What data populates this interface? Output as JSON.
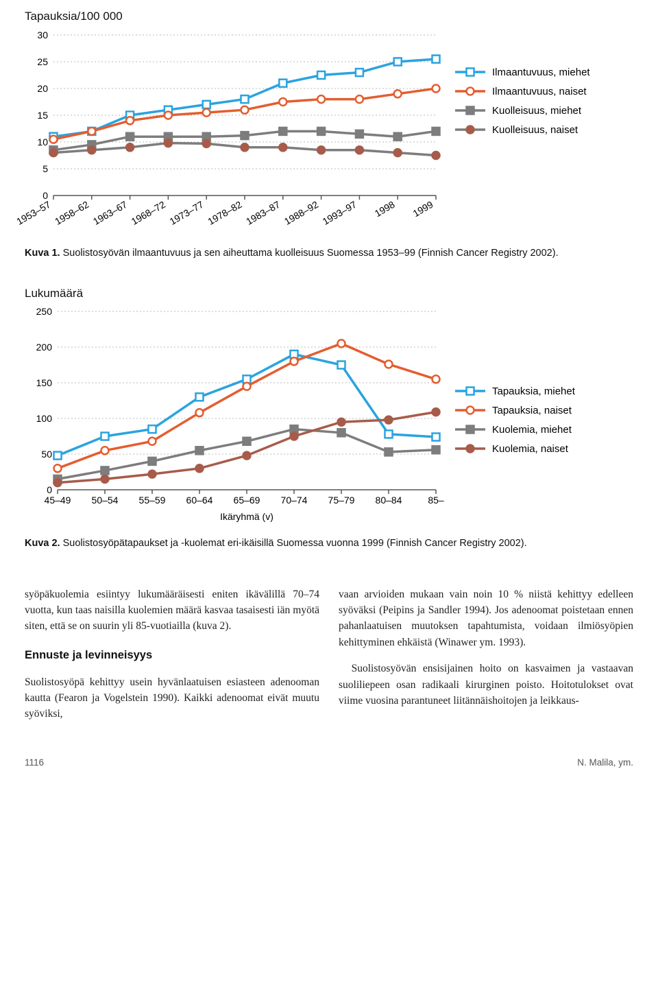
{
  "chart1": {
    "type": "line",
    "title": "Tapauksia/100 000",
    "x_labels": [
      "1953–57",
      "1958–62",
      "1963–67",
      "1968–72",
      "1973–77",
      "1978–82",
      "1983–87",
      "1988–92",
      "1993–97",
      "1998",
      "1999"
    ],
    "ylim": [
      0,
      30
    ],
    "ytick_step": 5,
    "grid_color": "#b9b9b9",
    "axis_color": "#555",
    "plot_bg": "#ffffff",
    "series": {
      "ilmaantuvuus_miehet": {
        "label": "Ilmaantuvuus, miehet",
        "color": "#2aa3df",
        "marker": "square",
        "marker_fill": "#ffffff",
        "values": [
          11,
          12,
          15,
          16,
          17,
          18,
          21,
          22.5,
          23,
          25,
          25.5
        ]
      },
      "ilmaantuvuus_naiset": {
        "label": "Ilmaantuvuus, naiset",
        "color": "#e45d2f",
        "marker": "circle",
        "marker_fill": "#ffffff",
        "values": [
          10.5,
          12,
          14,
          15,
          15.5,
          16,
          17.5,
          18,
          18,
          19,
          20
        ]
      },
      "kuolleisuus_miehet": {
        "label": "Kuolleisuus, miehet",
        "color": "#7d7d7d",
        "marker": "square",
        "marker_fill": "#7d7d7d",
        "values": [
          8.5,
          9.5,
          11,
          11,
          11,
          11.2,
          12,
          12,
          11.5,
          11,
          12
        ]
      },
      "kuolleisuus_naiset": {
        "label": "Kuolleisuus, naiset",
        "color": "#7d7d7d",
        "marker": "circle",
        "marker_fill": "#a75b4a",
        "stroke": "#a75b4a",
        "values": [
          8,
          8.5,
          9,
          9.8,
          9.7,
          9,
          9,
          8.5,
          8.5,
          8,
          7.5
        ]
      }
    }
  },
  "caption1_bold": "Kuva 1.",
  "caption1_text": "Suolistosyövän ilmaantuvuus ja sen aiheuttama kuolleisuus Suomessa 1953–99 (Finnish Cancer Registry 2002).",
  "chart2": {
    "type": "line",
    "title": "Lukumäärä",
    "x_labels": [
      "45–49",
      "50–54",
      "55–59",
      "60–64",
      "65–69",
      "70–74",
      "75–79",
      "80–84",
      "85–"
    ],
    "x_axis_label": "Ikäryhmä (v)",
    "ylim": [
      0,
      250
    ],
    "ytick_step": 50,
    "grid_color": "#b9b9b9",
    "axis_color": "#555",
    "plot_bg": "#ffffff",
    "series": {
      "tapauksia_miehet": {
        "label": "Tapauksia, miehet",
        "color": "#2aa3df",
        "marker": "square",
        "marker_fill": "#ffffff",
        "values": [
          48,
          75,
          85,
          130,
          155,
          190,
          175,
          78,
          74
        ]
      },
      "tapauksia_naiset": {
        "label": "Tapauksia, naiset",
        "color": "#e45d2f",
        "marker": "circle",
        "marker_fill": "#ffffff",
        "values": [
          30,
          55,
          68,
          108,
          145,
          180,
          205,
          176,
          155
        ]
      },
      "kuolemia_miehet": {
        "label": "Kuolemia, miehet",
        "color": "#7d7d7d",
        "marker": "square",
        "marker_fill": "#7d7d7d",
        "values": [
          15,
          27,
          40,
          55,
          68,
          85,
          80,
          53,
          56
        ]
      },
      "kuolemia_naiset": {
        "label": "Kuolemia, naiset",
        "color": "#a75b4a",
        "marker": "circle",
        "marker_fill": "#a75b4a",
        "values": [
          10,
          15,
          22,
          30,
          48,
          75,
          95,
          98,
          109
        ]
      }
    }
  },
  "caption2_bold": "Kuva 2.",
  "caption2_text": "Suolistosyöpätapaukset ja -kuolemat eri-ikäisillä Suomessa vuonna 1999 (Finnish Cancer Registry 2002).",
  "body": {
    "col1_p1": "syöpäkuolemia esiintyy lukumääräisesti eniten ikävälillä 70–74 vuotta, kun taas naisilla kuolemien määrä kasvaa tasaisesti iän myötä siten, että se on suurin yli 85-vuotiailla (kuva 2).",
    "section_heading": "Ennuste ja levinneisyys",
    "col1_p2": "Suolistosyöpä kehittyy usein hyvänlaatuisen esiasteen adenooman kautta (Fearon ja Vogelstein 1990). Kaikki adenoomat eivät muutu syöviksi,",
    "col2_p1": "vaan arvioiden mukaan vain noin 10 % niistä kehittyy edelleen syöväksi (Peipins ja Sandler 1994). Jos adenoomat poistetaan ennen pahanlaatuisen muutoksen tapahtumista, voidaan ilmiösyöpien kehittyminen ehkäistä (Winawer ym. 1993).",
    "col2_p2": "Suolistosyövän ensisijainen hoito on kasvaimen ja vastaavan suoliliepeen osan radikaali kirurginen poisto. Hoitotulokset ovat viime vuosina parantuneet liitännäishoitojen ja leikkaus-"
  },
  "footer": {
    "page": "1116",
    "source": "N. Malila, ym."
  }
}
